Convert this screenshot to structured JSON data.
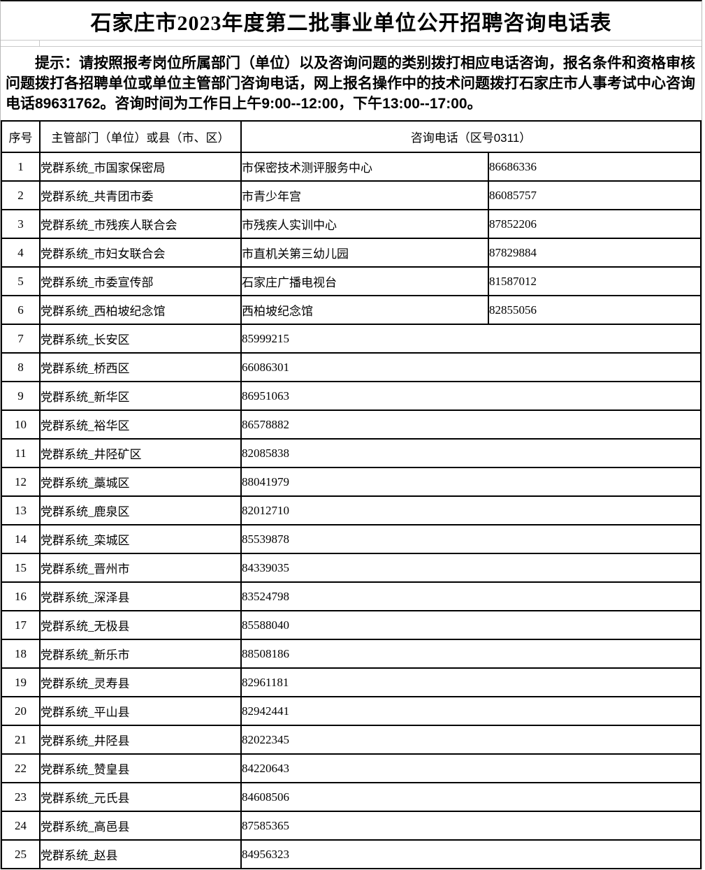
{
  "page": {
    "title": "石家庄市2023年度第二批事业单位公开招聘咨询电话表",
    "notice": "提示：请按照报考岗位所属部门（单位）以及咨询问题的类别拨打相应电话咨询，报名条件和资格审核问题拨打各招聘单位或单位主管部门咨询电话，网上报名操作中的技术问题拨打石家庄市人事考试中心咨询电话89631762。咨询时间为工作日上午9:00--12:00，下午13:00--17:00。"
  },
  "colors": {
    "grid_border": "#000000",
    "frame_border": "#c9c9c9",
    "text": "#000000",
    "background": "#ffffff"
  },
  "table": {
    "headers": {
      "index": "序号",
      "department": "主管部门（单位）或县（市、区）",
      "phone": "咨询电话（区号0311）"
    },
    "rows": [
      {
        "no": "1",
        "department": "党群系统_市国家保密局",
        "unit": "市保密技术测评服务中心",
        "phone": "86686336"
      },
      {
        "no": "2",
        "department": "党群系统_共青团市委",
        "unit": "市青少年宫",
        "phone": "86085757"
      },
      {
        "no": "3",
        "department": "党群系统_市残疾人联合会",
        "unit": "市残疾人实训中心",
        "phone": "87852206"
      },
      {
        "no": "4",
        "department": "党群系统_市妇女联合会",
        "unit": "市直机关第三幼儿园",
        "phone": "87829884"
      },
      {
        "no": "5",
        "department": "党群系统_市委宣传部",
        "unit": "石家庄广播电视台",
        "phone": "81587012"
      },
      {
        "no": "6",
        "department": "党群系统_西柏坡纪念馆",
        "unit": "西柏坡纪念馆",
        "phone": "82855056"
      },
      {
        "no": "7",
        "department": "党群系统_长安区",
        "phone": "85999215"
      },
      {
        "no": "8",
        "department": "党群系统_桥西区",
        "phone": "66086301"
      },
      {
        "no": "9",
        "department": "党群系统_新华区",
        "phone": "86951063"
      },
      {
        "no": "10",
        "department": "党群系统_裕华区",
        "phone": "86578882"
      },
      {
        "no": "11",
        "department": "党群系统_井陉矿区",
        "phone": "82085838"
      },
      {
        "no": "12",
        "department": "党群系统_藁城区",
        "phone": "88041979"
      },
      {
        "no": "13",
        "department": "党群系统_鹿泉区",
        "phone": "82012710"
      },
      {
        "no": "14",
        "department": "党群系统_栾城区",
        "phone": "85539878"
      },
      {
        "no": "15",
        "department": "党群系统_晋州市",
        "phone": "84339035"
      },
      {
        "no": "16",
        "department": "党群系统_深泽县",
        "phone": "83524798"
      },
      {
        "no": "17",
        "department": "党群系统_无极县",
        "phone": "85588040"
      },
      {
        "no": "18",
        "department": "党群系统_新乐市",
        "phone": "88508186"
      },
      {
        "no": "19",
        "department": "党群系统_灵寿县",
        "phone": "82961181"
      },
      {
        "no": "20",
        "department": "党群系统_平山县",
        "phone": "82942441"
      },
      {
        "no": "21",
        "department": "党群系统_井陉县",
        "phone": "82022345"
      },
      {
        "no": "22",
        "department": "党群系统_赞皇县",
        "phone": "84220643"
      },
      {
        "no": "23",
        "department": "党群系统_元氏县",
        "phone": "84608506"
      },
      {
        "no": "24",
        "department": "党群系统_高邑县",
        "phone": "87585365"
      },
      {
        "no": "25",
        "department": "党群系统_赵县",
        "phone": "84956323"
      }
    ]
  }
}
